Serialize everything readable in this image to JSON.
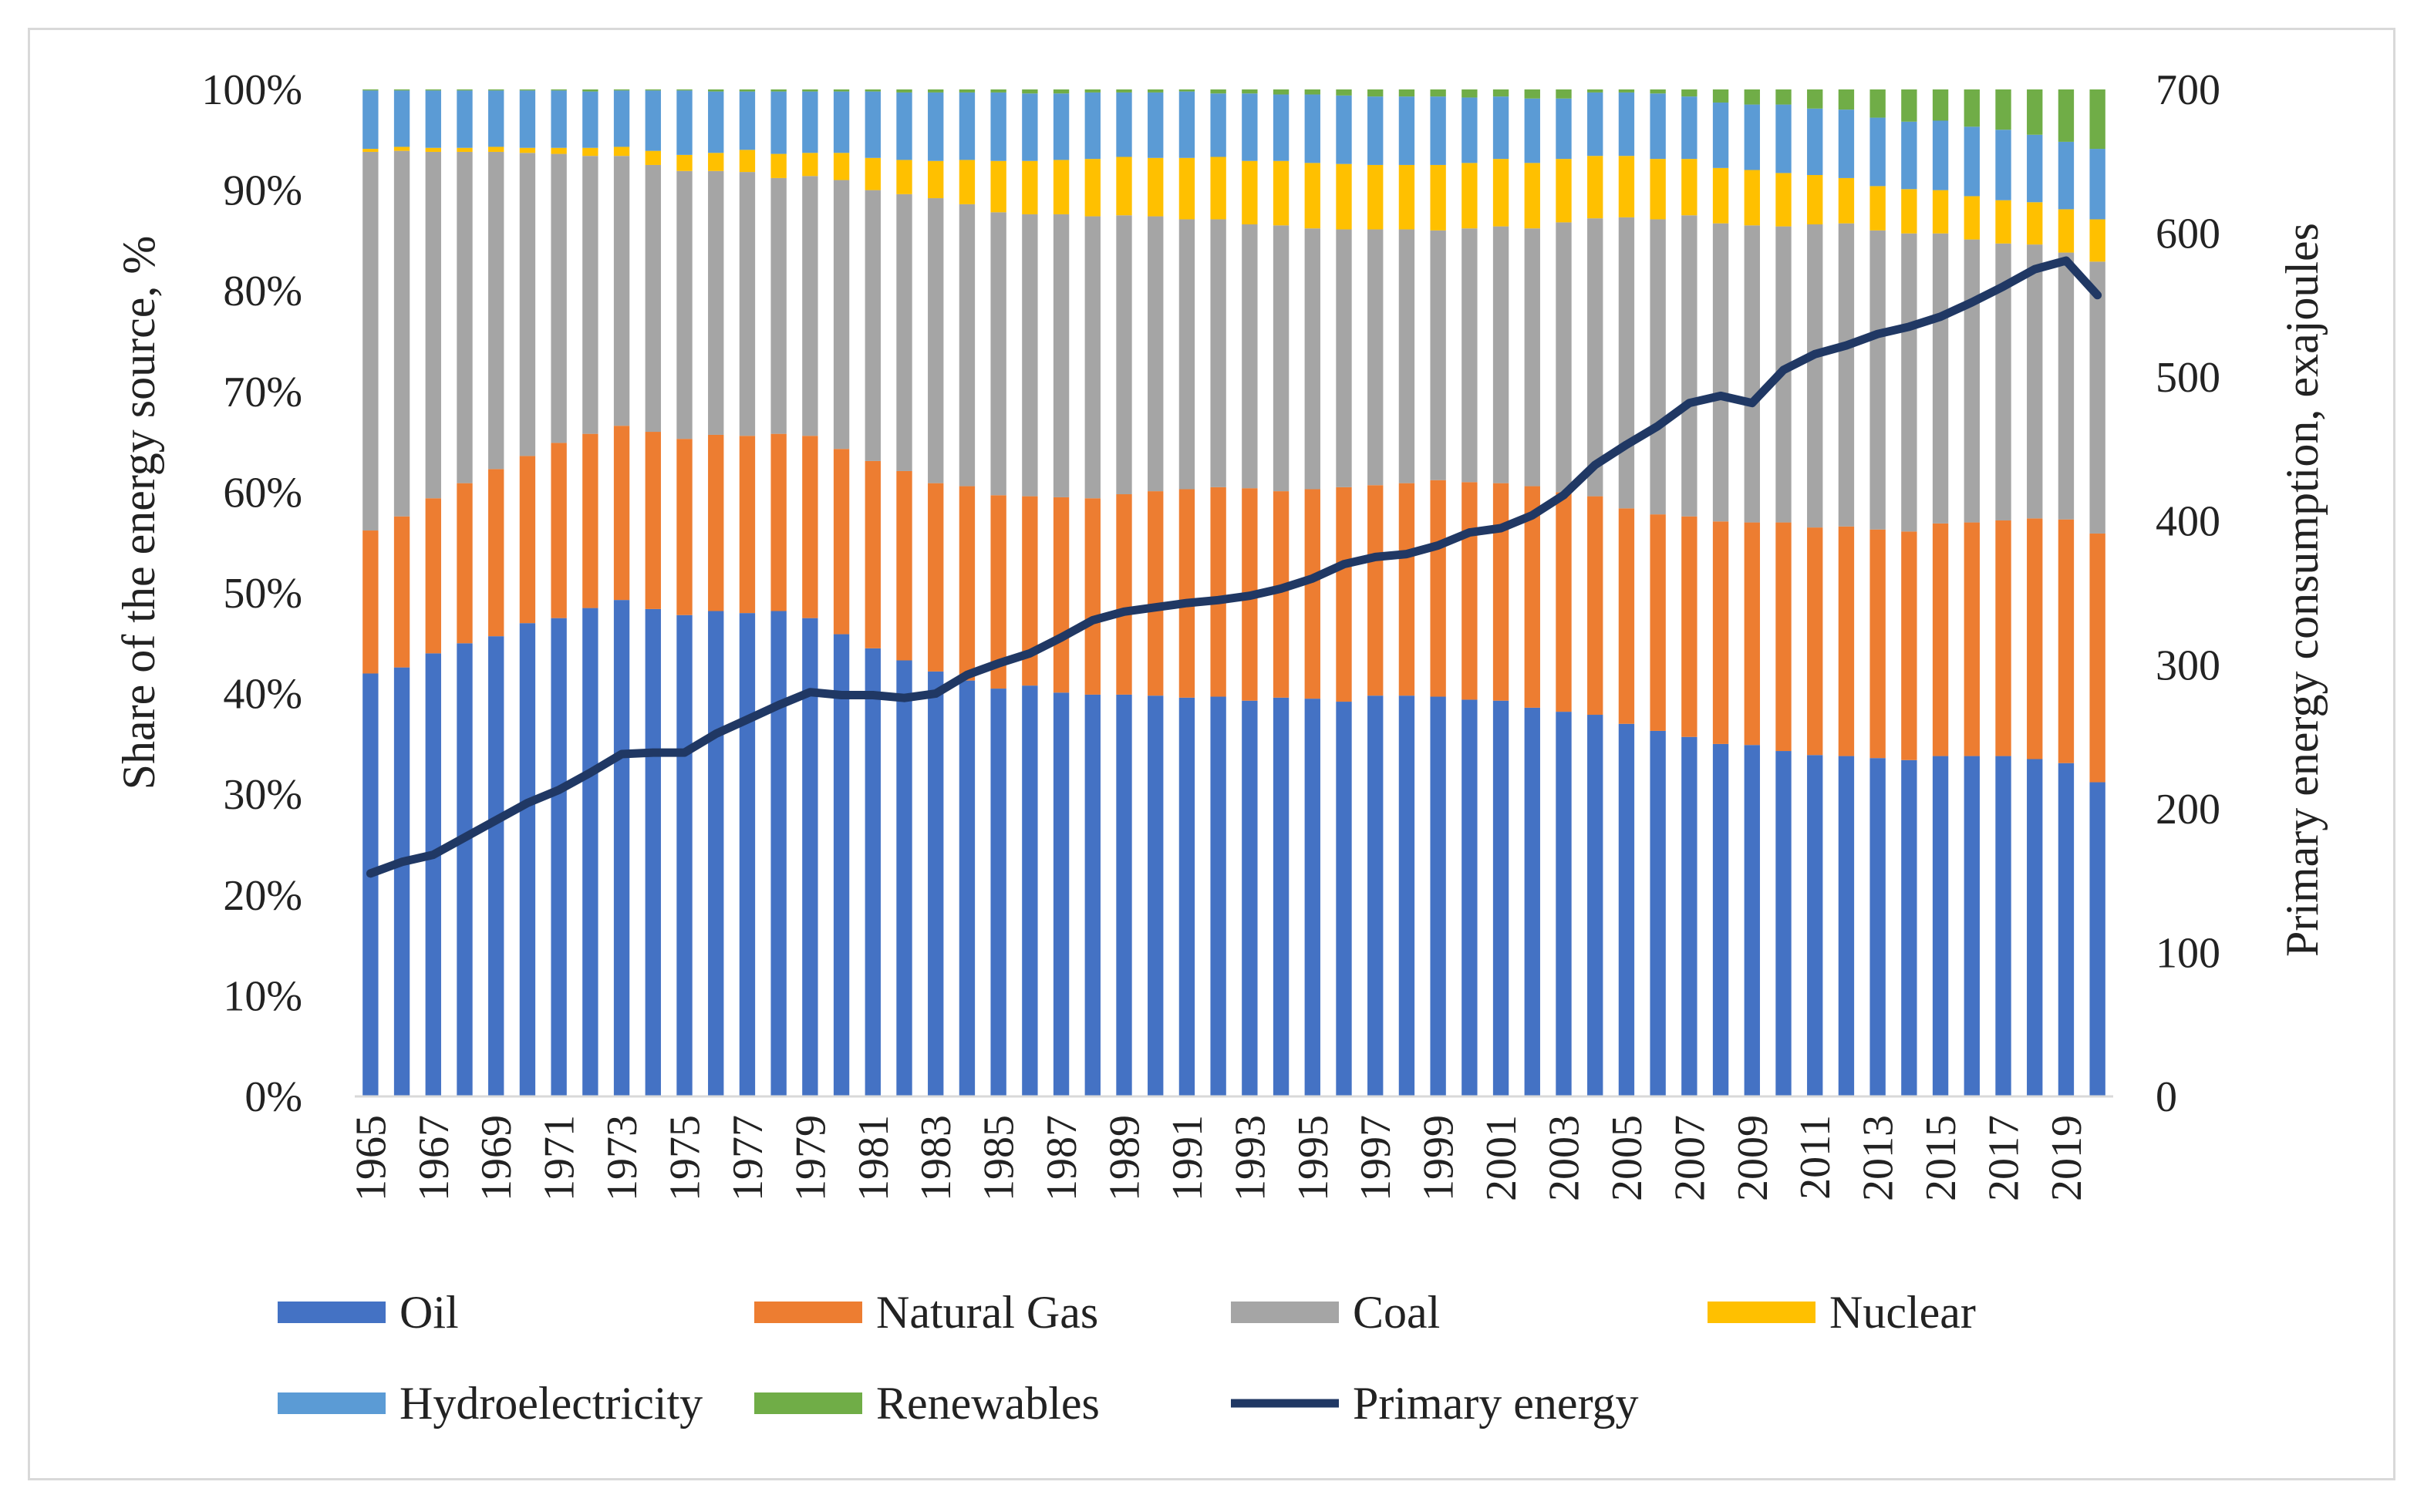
{
  "chart_data": {
    "type": "bar",
    "subtype": "stacked-100-with-line",
    "years": [
      1965,
      1966,
      1967,
      1968,
      1969,
      1970,
      1971,
      1972,
      1973,
      1974,
      1975,
      1976,
      1977,
      1978,
      1979,
      1980,
      1981,
      1982,
      1983,
      1984,
      1985,
      1986,
      1987,
      1988,
      1989,
      1990,
      1991,
      1992,
      1993,
      1994,
      1995,
      1996,
      1997,
      1998,
      1999,
      2000,
      2001,
      2002,
      2003,
      2004,
      2005,
      2006,
      2007,
      2008,
      2009,
      2010,
      2011,
      2012,
      2013,
      2014,
      2015,
      2016,
      2017,
      2018,
      2019,
      2020
    ],
    "x_tick_labels": [
      "1965",
      "1967",
      "1969",
      "1971",
      "1973",
      "1975",
      "1977",
      "1979",
      "1981",
      "1983",
      "1985",
      "1987",
      "1989",
      "1991",
      "1993",
      "1995",
      "1997",
      "1999",
      "2001",
      "2003",
      "2005",
      "2007",
      "2009",
      "2011",
      "2013",
      "2015",
      "2017",
      "2019"
    ],
    "y_left": {
      "label": "Share of the energy source, %",
      "ticks": [
        "0%",
        "10%",
        "20%",
        "30%",
        "40%",
        "50%",
        "60%",
        "70%",
        "80%",
        "90%",
        "100%"
      ],
      "range": [
        0,
        100
      ]
    },
    "y_right": {
      "label": "Primary energy consumption, exajoules",
      "ticks": [
        "0",
        "100",
        "200",
        "300",
        "400",
        "500",
        "600",
        "700"
      ],
      "range": [
        0,
        700
      ]
    },
    "series": [
      {
        "name": "Oil",
        "color": "#4472c4",
        "values": [
          42,
          42.6,
          44,
          45,
          45.7,
          47,
          47.5,
          48.5,
          49.3,
          48.4,
          47.8,
          48.2,
          48,
          48.2,
          47.5,
          45.9,
          44.5,
          43.3,
          42.2,
          41.3,
          40.5,
          40.8,
          40.1,
          39.9,
          39.9,
          39.8,
          39.6,
          39.7,
          39.3,
          39.6,
          39.5,
          39.2,
          39.8,
          39.8,
          39.7,
          39.4,
          39.3,
          38.6,
          38.2,
          37.9,
          37,
          36.3,
          35.7,
          35,
          34.9,
          34.3,
          33.9,
          33.8,
          33.6,
          33.4,
          33.8,
          33.8,
          33.8,
          33.5,
          33.1,
          31.2
        ]
      },
      {
        "name": "Natural Gas",
        "color": "#ed7d31",
        "values": [
          14.2,
          15,
          15.4,
          15.9,
          16.6,
          16.6,
          17.4,
          17.3,
          17.3,
          17.6,
          17.5,
          17.5,
          17.6,
          17.6,
          18.1,
          18.4,
          18.6,
          18.8,
          18.7,
          19.3,
          19.2,
          18.8,
          19.4,
          19.5,
          19.9,
          20.3,
          20.7,
          20.8,
          21.1,
          20.5,
          20.8,
          21.3,
          20.9,
          21.1,
          21.5,
          21.6,
          21.6,
          22,
          21.8,
          21.7,
          21.4,
          21.5,
          21.9,
          22.1,
          22.1,
          22.7,
          22.6,
          22.8,
          22.7,
          22.7,
          23.1,
          23.2,
          23.4,
          23.9,
          24.2,
          24.7
        ]
      },
      {
        "name": "Coal",
        "color": "#a5a5a5",
        "values": [
          37.6,
          36.3,
          34.4,
          32.9,
          31.5,
          30.1,
          28.7,
          27.6,
          26.8,
          26.5,
          26.6,
          26.2,
          26.2,
          25.4,
          25.8,
          26.7,
          26.9,
          27.5,
          28.3,
          28,
          28.1,
          28,
          28.1,
          28,
          27.7,
          27.3,
          26.8,
          26.6,
          26.2,
          26.4,
          25.9,
          25.6,
          25.4,
          25.2,
          24.8,
          25.2,
          25.5,
          25.6,
          26.8,
          27.6,
          28.9,
          29.3,
          29.9,
          29.6,
          29.5,
          29.4,
          30.1,
          30.1,
          29.7,
          29.6,
          28.8,
          28.1,
          27.5,
          27.2,
          26.5,
          27
        ]
      },
      {
        "name": "Nuclear",
        "color": "#ffc000",
        "values": [
          0.3,
          0.4,
          0.4,
          0.4,
          0.5,
          0.5,
          0.6,
          0.8,
          0.9,
          1.4,
          1.6,
          1.8,
          2.2,
          2.4,
          2.3,
          2.7,
          3.2,
          3.4,
          3.7,
          4.4,
          5.1,
          5.3,
          5.4,
          5.7,
          5.8,
          5.8,
          6.1,
          6.2,
          6.3,
          6.4,
          6.5,
          6.5,
          6.4,
          6.4,
          6.5,
          6.5,
          6.7,
          6.5,
          6.3,
          6.2,
          6.1,
          6,
          5.6,
          5.5,
          5.5,
          5.3,
          4.9,
          4.5,
          4.4,
          4.4,
          4.3,
          4.3,
          4.3,
          4.2,
          4.3,
          4.2
        ]
      },
      {
        "name": "Hydroelectricity",
        "color": "#5b9bd5",
        "values": [
          5.8,
          5.6,
          5.7,
          5.7,
          5.6,
          5.7,
          5.7,
          5.6,
          5.6,
          6,
          6.4,
          6.1,
          5.8,
          6.2,
          6.1,
          6.1,
          6.6,
          6.7,
          6.8,
          6.7,
          6.8,
          6.7,
          6.6,
          6.6,
          6.4,
          6.5,
          6.6,
          6.3,
          6.7,
          6.6,
          6.8,
          6.8,
          6.8,
          6.8,
          6.8,
          6.5,
          6.2,
          6.4,
          6,
          6.3,
          6.3,
          6.5,
          6.2,
          6.5,
          6.5,
          6.8,
          6.6,
          6.8,
          6.8,
          6.7,
          6.9,
          6.9,
          7,
          6.7,
          6.7,
          7
        ]
      },
      {
        "name": "Renewables",
        "color": "#70ad47",
        "values": [
          0.1,
          0.1,
          0.1,
          0.1,
          0.1,
          0.1,
          0.1,
          0.2,
          0.1,
          0.1,
          0.1,
          0.2,
          0.2,
          0.2,
          0.2,
          0.2,
          0.2,
          0.3,
          0.3,
          0.3,
          0.3,
          0.4,
          0.4,
          0.3,
          0.3,
          0.3,
          0.2,
          0.4,
          0.4,
          0.5,
          0.5,
          0.6,
          0.7,
          0.7,
          0.7,
          0.8,
          0.7,
          0.9,
          0.9,
          0.3,
          0.3,
          0.4,
          0.7,
          1.3,
          1.5,
          1.5,
          1.9,
          2.0,
          2.8,
          3.2,
          3.1,
          3.7,
          4.0,
          4.5,
          5.2,
          5.9
        ]
      }
    ],
    "line_series": {
      "name": "Primary energy",
      "color": "#203864",
      "axis": "right",
      "values": [
        155,
        163,
        168,
        180,
        192,
        204,
        213,
        225,
        238,
        239,
        239,
        252,
        262,
        272,
        281,
        279,
        279,
        277,
        280,
        293,
        301,
        308,
        319,
        331,
        337,
        340,
        343,
        345,
        348,
        353,
        360,
        370,
        375,
        377,
        383,
        392,
        395,
        404,
        418,
        439,
        453,
        466,
        482,
        487,
        482,
        505,
        516,
        522,
        530,
        535,
        542,
        552,
        563,
        575,
        581,
        557
      ]
    },
    "legend": [
      "Oil",
      "Natural Gas",
      "Coal",
      "Nuclear",
      "Hydroelectricity",
      "Renewables",
      "Primary energy"
    ],
    "legend_position": "bottom",
    "grid": false
  }
}
